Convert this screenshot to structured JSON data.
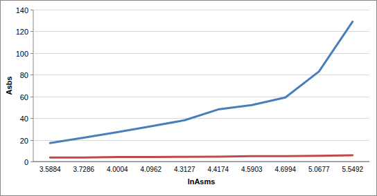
{
  "chart_data": {
    "type": "line",
    "x_label": "lnAsms",
    "y_label": "Asbs",
    "categories": [
      "3.5884",
      "3.7286",
      "4.0004",
      "4.0962",
      "4.3127",
      "4.4174",
      "4.5903",
      "4.6994",
      "5.0677",
      "5.5492"
    ],
    "series": [
      {
        "color": "#4a7ebb",
        "values": [
          17,
          22,
          27,
          32.5,
          38,
          48,
          52,
          59,
          83,
          129
        ]
      },
      {
        "color": "#be4b48",
        "values": [
          3.6,
          3.7,
          4.2,
          4.2,
          4.3,
          4.4,
          5,
          5,
          5.2,
          5.7
        ]
      }
    ],
    "ylim": [
      0,
      140
    ],
    "yticks": [
      0,
      20,
      40,
      60,
      80,
      100,
      120,
      140
    ],
    "grid": true
  }
}
